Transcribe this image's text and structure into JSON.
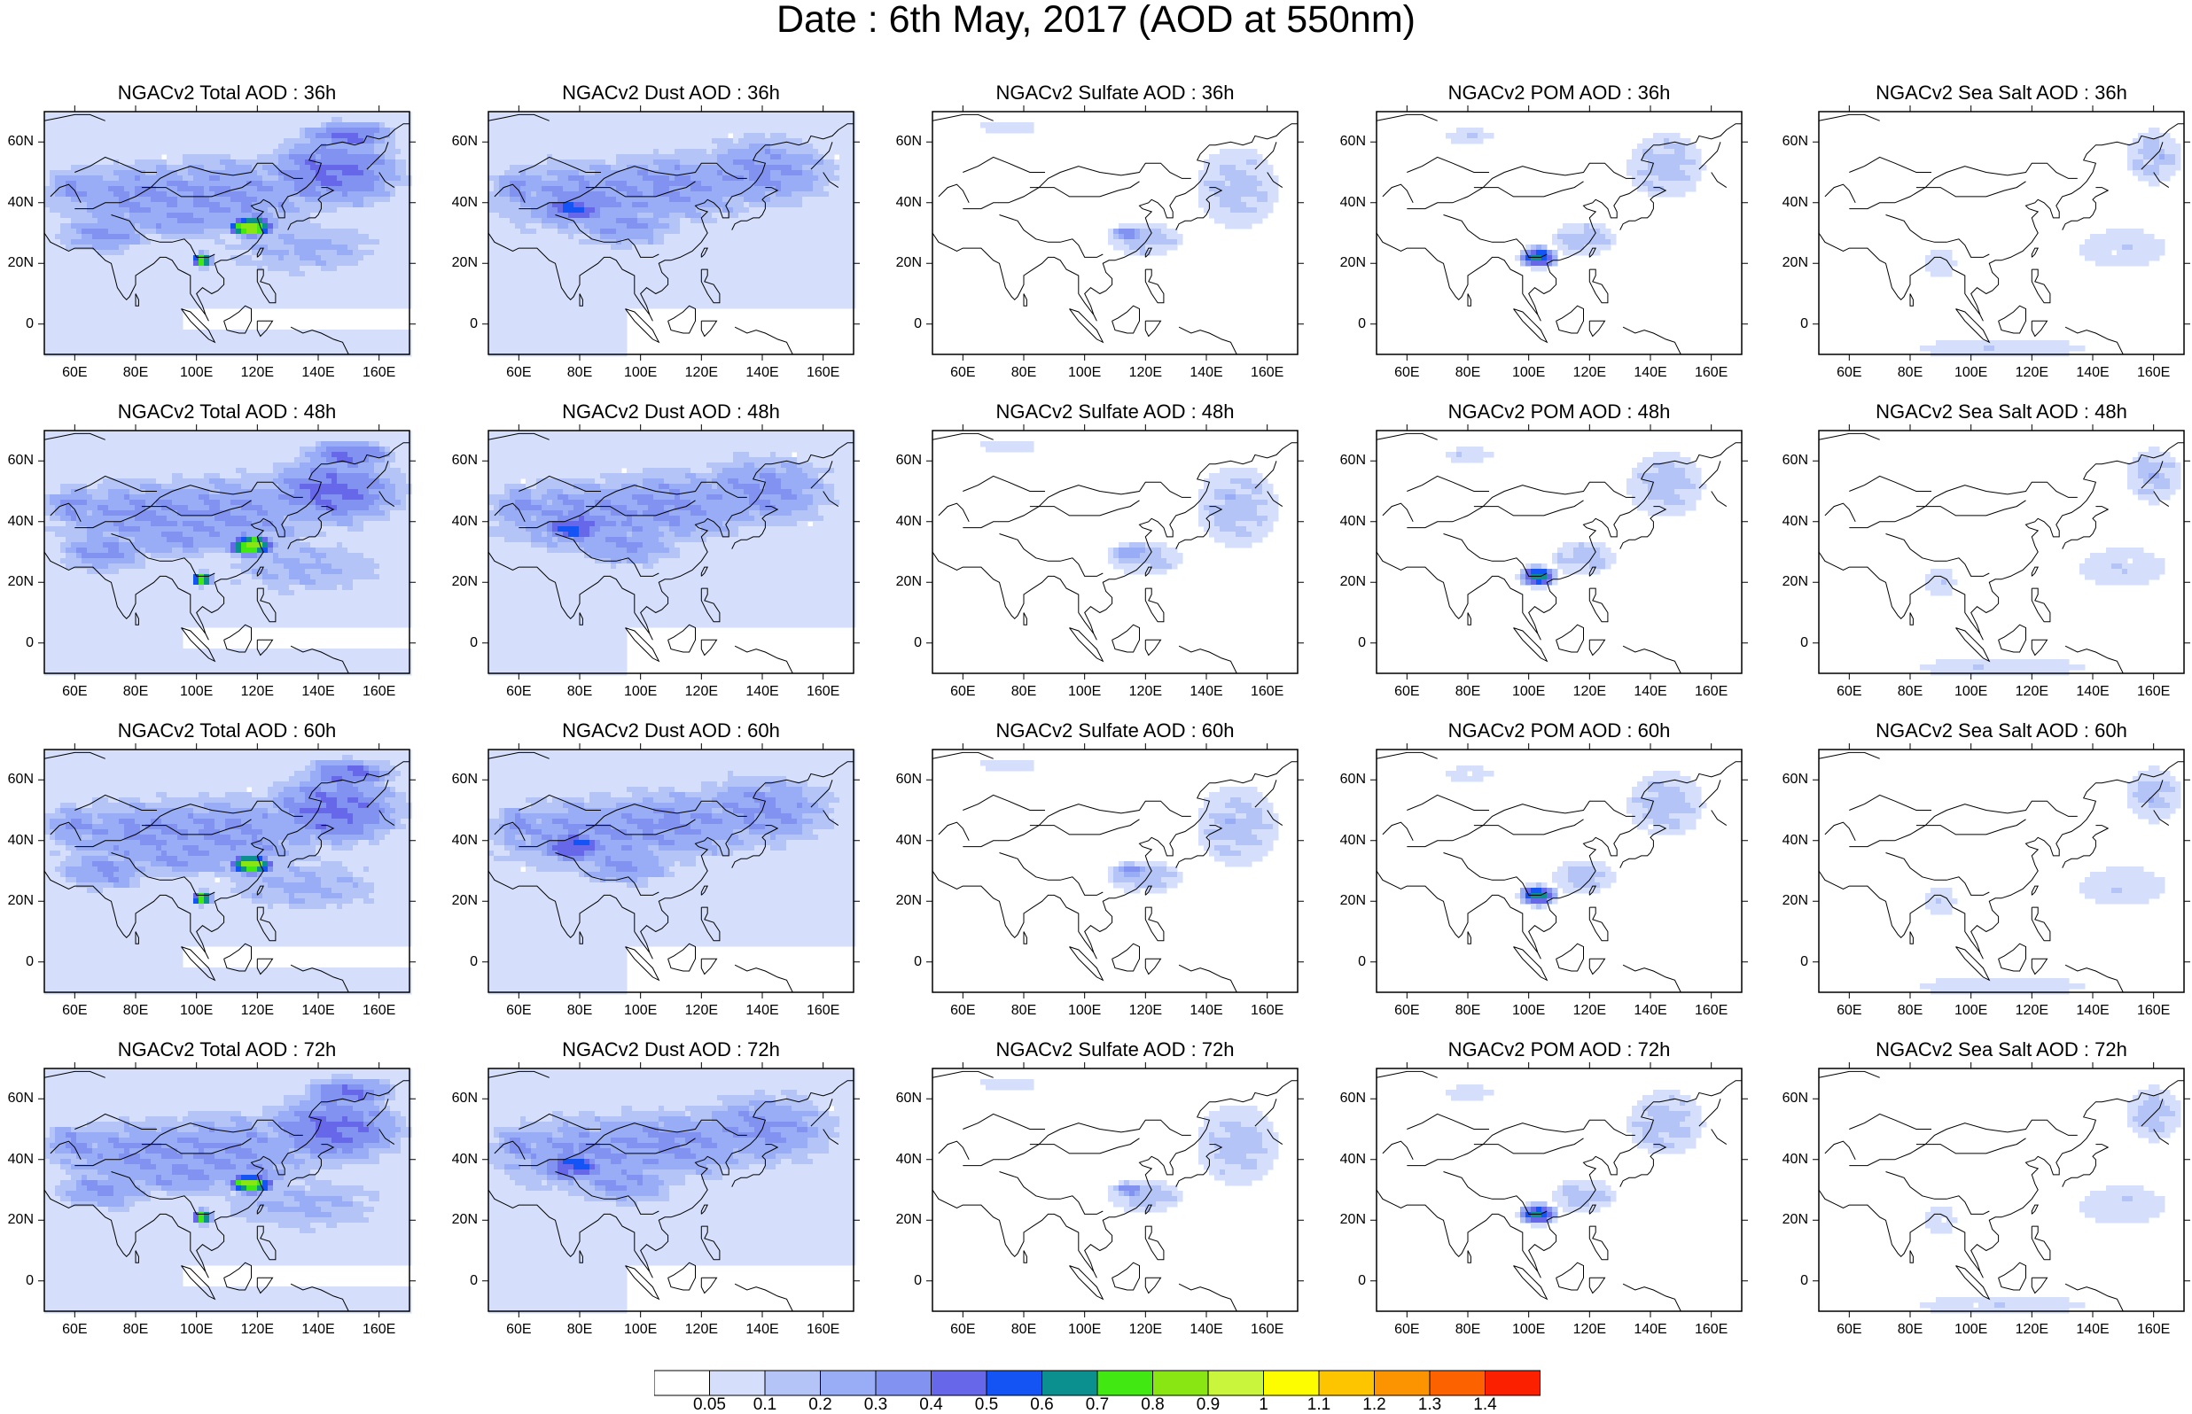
{
  "title": "Date : 6th May, 2017 (AOD at 550nm)",
  "panels": [
    {
      "row": 0,
      "col": 0,
      "title": "NGACv2 Total AOD : 36h"
    },
    {
      "row": 0,
      "col": 1,
      "title": "NGACv2 Dust AOD : 36h"
    },
    {
      "row": 0,
      "col": 2,
      "title": "NGACv2 Sulfate AOD : 36h"
    },
    {
      "row": 0,
      "col": 3,
      "title": "NGACv2 POM AOD : 36h"
    },
    {
      "row": 0,
      "col": 4,
      "title": "NGACv2 Sea Salt AOD : 36h"
    },
    {
      "row": 1,
      "col": 0,
      "title": "NGACv2 Total AOD : 48h"
    },
    {
      "row": 1,
      "col": 1,
      "title": "NGACv2 Dust AOD : 48h"
    },
    {
      "row": 1,
      "col": 2,
      "title": "NGACv2 Sulfate AOD : 48h"
    },
    {
      "row": 1,
      "col": 3,
      "title": "NGACv2 POM AOD : 48h"
    },
    {
      "row": 1,
      "col": 4,
      "title": "NGACv2 Sea Salt AOD : 48h"
    },
    {
      "row": 2,
      "col": 0,
      "title": "NGACv2 Total AOD : 60h"
    },
    {
      "row": 2,
      "col": 1,
      "title": "NGACv2 Dust AOD : 60h"
    },
    {
      "row": 2,
      "col": 2,
      "title": "NGACv2 Sulfate AOD : 60h"
    },
    {
      "row": 2,
      "col": 3,
      "title": "NGACv2 POM AOD : 60h"
    },
    {
      "row": 2,
      "col": 4,
      "title": "NGACv2 Sea Salt AOD : 60h"
    },
    {
      "row": 3,
      "col": 0,
      "title": "NGACv2 Total AOD : 72h"
    },
    {
      "row": 3,
      "col": 1,
      "title": "NGACv2 Dust AOD : 72h"
    },
    {
      "row": 3,
      "col": 2,
      "title": "NGACv2 Sulfate AOD : 72h"
    },
    {
      "row": 3,
      "col": 3,
      "title": "NGACv2 POM AOD : 72h"
    },
    {
      "row": 3,
      "col": 4,
      "title": "NGACv2 Sea Salt  AOD : 72h"
    }
  ],
  "axes": {
    "lon_ticks": [
      "60E",
      "80E",
      "100E",
      "120E",
      "140E",
      "160E"
    ],
    "lat_ticks": [
      "60N",
      "40N",
      "20N",
      "0"
    ]
  },
  "colorbar": {
    "labels": [
      "0.05",
      "0.1",
      "0.2",
      "0.3",
      "0.4",
      "0.5",
      "0.6",
      "0.7",
      "0.8",
      "0.9",
      "1",
      "1.1",
      "1.2",
      "1.3",
      "1.4"
    ],
    "colors": [
      "#ffffff",
      "#d5dffb",
      "#b4c4f6",
      "#98adf5",
      "#8192f0",
      "#6767ea",
      "#1454f4",
      "#0b8f8f",
      "#42e811",
      "#89e612",
      "#c9f53c",
      "#fdfd00",
      "#fcc500",
      "#fc9300",
      "#fc6200",
      "#fb2000"
    ]
  },
  "coastline_color": "#000000"
}
